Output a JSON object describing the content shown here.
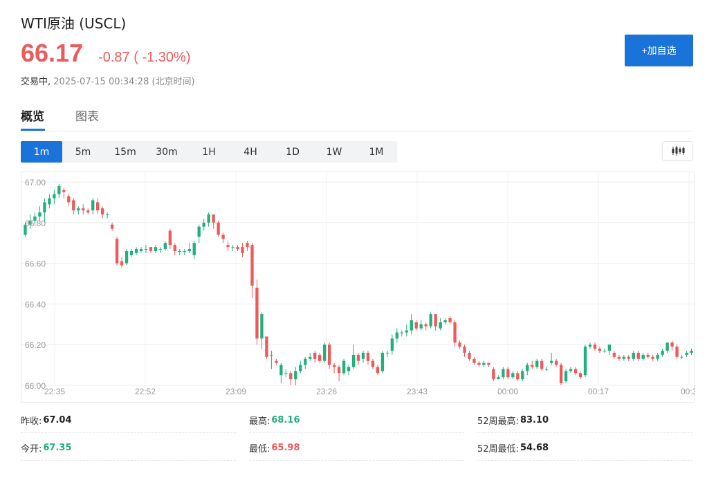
{
  "header": {
    "title": "WTI原油 (USCL)",
    "price": "66.17",
    "change": "-0.87 ( -1.30%)",
    "status_prefix": "交易中,",
    "timestamp": "2025-07-15 00:34:28 (北京时间)",
    "add_button": "+加自选",
    "price_color": "#ee5a5a"
  },
  "tabs": [
    {
      "label": "概览",
      "active": true
    },
    {
      "label": "图表",
      "active": false
    }
  ],
  "periods": [
    {
      "label": "1m",
      "active": true
    },
    {
      "label": "5m",
      "active": false
    },
    {
      "label": "15m",
      "active": false
    },
    {
      "label": "30m",
      "active": false
    },
    {
      "label": "1H",
      "active": false
    },
    {
      "label": "4H",
      "active": false
    },
    {
      "label": "1D",
      "active": false
    },
    {
      "label": "1W",
      "active": false
    },
    {
      "label": "1M",
      "active": false
    }
  ],
  "chart_type_icon": "candlestick-icon",
  "chart_data": {
    "type": "candlestick",
    "ylim": [
      66.0,
      67.0
    ],
    "y_ticks": [
      "67.00",
      "66.80",
      "66.60",
      "66.40",
      "66.20",
      "66.00"
    ],
    "x_ticks": [
      "22:35",
      "22:52",
      "23:09",
      "23:26",
      "23:43",
      "00:00",
      "00:17",
      "00:3"
    ],
    "grid": true,
    "up_color": "#1fb07d",
    "down_color": "#ee5a5a",
    "candles": [
      [
        66.74,
        66.79,
        66.73,
        66.8
      ],
      [
        66.79,
        66.81,
        66.77,
        66.84
      ],
      [
        66.81,
        66.83,
        66.79,
        66.85
      ],
      [
        66.83,
        66.85,
        66.81,
        66.88
      ],
      [
        66.85,
        66.9,
        66.8,
        66.92
      ],
      [
        66.89,
        66.92,
        66.87,
        66.94
      ],
      [
        66.92,
        66.94,
        66.89,
        66.96
      ],
      [
        66.94,
        66.98,
        66.92,
        66.99
      ],
      [
        66.96,
        66.95,
        66.92,
        66.97
      ],
      [
        66.93,
        66.9,
        66.88,
        66.94
      ],
      [
        66.91,
        66.86,
        66.84,
        66.92
      ],
      [
        66.86,
        66.87,
        66.84,
        66.88
      ],
      [
        66.87,
        66.86,
        66.84,
        66.89
      ],
      [
        66.86,
        66.85,
        66.84,
        66.87
      ],
      [
        66.86,
        66.91,
        66.84,
        66.92
      ],
      [
        66.9,
        66.86,
        66.84,
        66.92
      ],
      [
        66.87,
        66.84,
        66.82,
        66.88
      ],
      [
        66.84,
        66.84,
        66.82,
        66.85
      ],
      [
        66.79,
        66.77,
        66.76,
        66.8
      ],
      [
        66.72,
        66.6,
        66.59,
        66.73
      ],
      [
        66.61,
        66.59,
        66.58,
        66.63
      ],
      [
        66.6,
        66.66,
        66.59,
        66.67
      ],
      [
        66.64,
        66.66,
        66.63,
        66.67
      ],
      [
        66.65,
        66.67,
        66.64,
        66.68
      ],
      [
        66.66,
        66.67,
        66.65,
        66.68
      ],
      [
        66.67,
        66.67,
        66.65,
        66.69
      ],
      [
        66.68,
        66.66,
        66.65,
        66.68
      ],
      [
        66.66,
        66.68,
        66.65,
        66.69
      ],
      [
        66.67,
        66.67,
        66.65,
        66.68
      ],
      [
        66.67,
        66.7,
        66.66,
        66.71
      ],
      [
        66.76,
        66.69,
        66.67,
        66.77
      ],
      [
        66.69,
        66.66,
        66.64,
        66.7
      ],
      [
        66.66,
        66.66,
        66.64,
        66.67
      ],
      [
        66.66,
        66.66,
        66.64,
        66.67
      ],
      [
        66.66,
        66.67,
        66.65,
        66.7
      ],
      [
        66.64,
        66.7,
        66.62,
        66.71
      ],
      [
        66.73,
        66.78,
        66.7,
        66.79
      ],
      [
        66.78,
        66.8,
        66.76,
        66.82
      ],
      [
        66.8,
        66.84,
        66.78,
        66.85
      ],
      [
        66.84,
        66.8,
        66.77,
        66.84
      ],
      [
        66.8,
        66.74,
        66.73,
        66.81
      ],
      [
        66.74,
        66.72,
        66.7,
        66.75
      ],
      [
        66.69,
        66.68,
        66.66,
        66.71
      ],
      [
        66.68,
        66.68,
        66.66,
        66.69
      ],
      [
        66.68,
        66.67,
        66.66,
        66.69
      ],
      [
        66.68,
        66.65,
        66.63,
        66.7
      ],
      [
        66.7,
        66.68,
        66.66,
        66.71
      ],
      [
        66.69,
        66.49,
        66.43,
        66.7
      ],
      [
        66.48,
        66.23,
        66.2,
        66.52
      ],
      [
        66.23,
        66.35,
        66.18,
        66.36
      ],
      [
        66.24,
        66.14,
        66.13,
        66.24
      ],
      [
        66.15,
        66.15,
        66.08,
        66.17
      ],
      [
        66.12,
        66.11,
        66.1,
        66.13
      ],
      [
        66.05,
        66.1,
        66.01,
        66.11
      ],
      [
        66.06,
        66.06,
        66.04,
        66.08
      ],
      [
        66.06,
        66.03,
        66.0,
        66.07
      ],
      [
        66.03,
        66.07,
        66.0,
        66.09
      ],
      [
        66.07,
        66.1,
        66.06,
        66.12
      ],
      [
        66.1,
        66.13,
        66.08,
        66.14
      ],
      [
        66.13,
        66.14,
        66.12,
        66.16
      ],
      [
        66.16,
        66.13,
        66.11,
        66.17
      ],
      [
        66.15,
        66.12,
        66.11,
        66.16
      ],
      [
        66.12,
        66.2,
        66.11,
        66.21
      ],
      [
        66.2,
        66.1,
        66.08,
        66.21
      ],
      [
        66.1,
        66.09,
        66.06,
        66.11
      ],
      [
        66.09,
        66.06,
        66.02,
        66.1
      ],
      [
        66.06,
        66.12,
        66.05,
        66.13
      ],
      [
        66.07,
        66.09,
        66.05,
        66.1
      ],
      [
        66.09,
        66.15,
        66.08,
        66.2
      ],
      [
        66.15,
        66.12,
        66.1,
        66.16
      ],
      [
        66.13,
        66.16,
        66.11,
        66.17
      ],
      [
        66.16,
        66.12,
        66.1,
        66.17
      ],
      [
        66.12,
        66.09,
        66.08,
        66.13
      ],
      [
        66.09,
        66.06,
        66.05,
        66.1
      ],
      [
        66.07,
        66.16,
        66.06,
        66.17
      ],
      [
        66.16,
        66.16,
        66.14,
        66.17
      ],
      [
        66.17,
        66.23,
        66.15,
        66.25
      ],
      [
        66.23,
        66.26,
        66.21,
        66.28
      ],
      [
        66.26,
        66.26,
        66.24,
        66.27
      ],
      [
        66.26,
        66.27,
        66.24,
        66.3
      ],
      [
        66.27,
        66.32,
        66.25,
        66.35
      ],
      [
        66.31,
        66.28,
        66.27,
        66.32
      ],
      [
        66.28,
        66.3,
        66.27,
        66.32
      ],
      [
        66.3,
        66.29,
        66.27,
        66.31
      ],
      [
        66.29,
        66.35,
        66.28,
        66.36
      ],
      [
        66.35,
        66.29,
        66.27,
        66.35
      ],
      [
        66.28,
        66.31,
        66.27,
        66.33
      ],
      [
        66.31,
        66.32,
        66.3,
        66.33
      ],
      [
        66.33,
        66.31,
        66.3,
        66.34
      ],
      [
        66.31,
        66.21,
        66.19,
        66.32
      ],
      [
        66.21,
        66.19,
        66.18,
        66.22
      ],
      [
        66.19,
        66.16,
        66.14,
        66.2
      ],
      [
        66.16,
        66.13,
        66.12,
        66.17
      ],
      [
        66.13,
        66.11,
        66.1,
        66.14
      ],
      [
        66.11,
        66.1,
        66.09,
        66.12
      ],
      [
        66.1,
        66.11,
        66.09,
        66.12
      ],
      [
        66.11,
        66.1,
        66.09,
        66.11
      ],
      [
        66.08,
        66.03,
        66.02,
        66.09
      ],
      [
        66.03,
        66.04,
        66.03,
        66.05
      ],
      [
        66.04,
        66.08,
        66.03,
        66.09
      ],
      [
        66.08,
        66.04,
        66.03,
        66.09
      ],
      [
        66.04,
        66.06,
        66.03,
        66.07
      ],
      [
        66.06,
        66.03,
        66.02,
        66.07
      ],
      [
        66.03,
        66.07,
        66.02,
        66.08
      ],
      [
        66.07,
        66.1,
        66.05,
        66.11
      ],
      [
        66.1,
        66.09,
        66.08,
        66.12
      ],
      [
        66.09,
        66.12,
        66.08,
        66.13
      ],
      [
        66.12,
        66.08,
        66.07,
        66.13
      ],
      [
        66.08,
        66.08,
        66.07,
        66.09
      ],
      [
        66.11,
        66.12,
        66.1,
        66.16
      ],
      [
        66.12,
        66.1,
        66.09,
        66.13
      ],
      [
        66.1,
        66.01,
        66.0,
        66.11
      ],
      [
        66.02,
        66.07,
        66.01,
        66.08
      ],
      [
        66.07,
        66.08,
        66.06,
        66.09
      ],
      [
        66.08,
        66.06,
        66.05,
        66.09
      ],
      [
        66.06,
        66.04,
        66.03,
        66.07
      ],
      [
        66.05,
        66.19,
        66.04,
        66.2
      ],
      [
        66.19,
        66.2,
        66.18,
        66.21
      ],
      [
        66.2,
        66.18,
        66.17,
        66.21
      ],
      [
        66.18,
        66.17,
        66.16,
        66.19
      ],
      [
        66.17,
        66.17,
        66.16,
        66.18
      ],
      [
        66.17,
        66.2,
        66.15,
        66.2
      ],
      [
        66.16,
        66.14,
        66.13,
        66.17
      ],
      [
        66.14,
        66.13,
        66.12,
        66.15
      ],
      [
        66.13,
        66.14,
        66.12,
        66.15
      ],
      [
        66.14,
        66.13,
        66.12,
        66.15
      ],
      [
        66.13,
        66.16,
        66.12,
        66.17
      ],
      [
        66.16,
        66.13,
        66.12,
        66.17
      ],
      [
        66.13,
        66.15,
        66.12,
        66.16
      ],
      [
        66.15,
        66.14,
        66.13,
        66.16
      ],
      [
        66.14,
        66.13,
        66.12,
        66.15
      ],
      [
        66.13,
        66.15,
        66.12,
        66.16
      ],
      [
        66.15,
        66.17,
        66.14,
        66.18
      ],
      [
        66.17,
        66.21,
        66.16,
        66.21
      ],
      [
        66.21,
        66.19,
        66.17,
        66.22
      ],
      [
        66.19,
        66.14,
        66.13,
        66.2
      ],
      [
        66.14,
        66.14,
        66.13,
        66.15
      ],
      [
        66.15,
        66.16,
        66.14,
        66.17
      ],
      [
        66.16,
        66.17,
        66.15,
        66.18
      ]
    ]
  },
  "stats": [
    {
      "label": "昨收:",
      "value": "67.04",
      "tone": "neutral"
    },
    {
      "label": "最高:",
      "value": "68.16",
      "tone": "up"
    },
    {
      "label": "52周最高:",
      "value": "83.10",
      "tone": "neutral"
    },
    {
      "label": "今开:",
      "value": "67.35",
      "tone": "up"
    },
    {
      "label": "最低:",
      "value": "65.98",
      "tone": "down"
    },
    {
      "label": "52周最低:",
      "value": "54.68",
      "tone": "neutral"
    }
  ]
}
